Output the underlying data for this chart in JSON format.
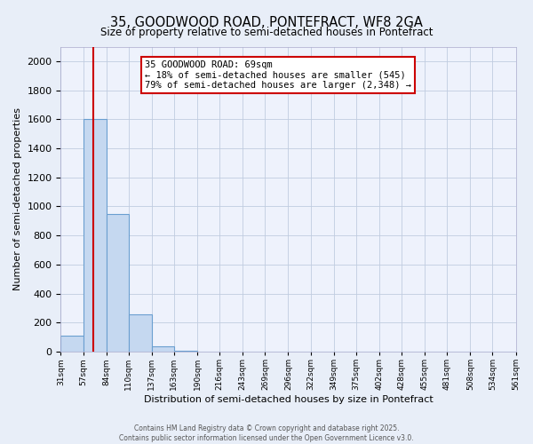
{
  "title": "35, GOODWOOD ROAD, PONTEFRACT, WF8 2GA",
  "subtitle": "Size of property relative to semi-detached houses in Pontefract",
  "xlabel": "Distribution of semi-detached houses by size in Pontefract",
  "ylabel": "Number of semi-detached properties",
  "bin_edges": [
    31,
    57,
    84,
    110,
    137,
    163,
    190,
    216,
    243,
    269,
    296,
    322,
    349,
    375,
    402,
    428,
    455,
    481,
    508,
    534,
    561
  ],
  "bar_heights": [
    110,
    1600,
    950,
    255,
    35,
    5,
    0,
    0,
    0,
    0,
    0,
    0,
    0,
    0,
    0,
    0,
    0,
    0,
    0,
    0
  ],
  "bar_color": "#c5d8f0",
  "bar_edgecolor": "#6a9fd0",
  "vline_color": "#cc0000",
  "vline_x": 69,
  "annotation_title": "35 GOODWOOD ROAD: 69sqm",
  "annotation_line1": "← 18% of semi-detached houses are smaller (545)",
  "annotation_line2": "79% of semi-detached houses are larger (2,348) →",
  "annotation_box_facecolor": "#ffffff",
  "annotation_box_edgecolor": "#cc0000",
  "ylim": [
    0,
    2100
  ],
  "yticks": [
    0,
    200,
    400,
    600,
    800,
    1000,
    1200,
    1400,
    1600,
    1800,
    2000
  ],
  "tick_labels": [
    "31sqm",
    "57sqm",
    "84sqm",
    "110sqm",
    "137sqm",
    "163sqm",
    "190sqm",
    "216sqm",
    "243sqm",
    "269sqm",
    "296sqm",
    "322sqm",
    "349sqm",
    "375sqm",
    "402sqm",
    "428sqm",
    "455sqm",
    "481sqm",
    "508sqm",
    "534sqm",
    "561sqm"
  ],
  "footer_line1": "Contains HM Land Registry data © Crown copyright and database right 2025.",
  "footer_line2": "Contains public sector information licensed under the Open Government Licence v3.0.",
  "fig_bg_color": "#e8eef8",
  "plot_bg_color": "#eef2fc",
  "grid_color": "#c0cce0"
}
